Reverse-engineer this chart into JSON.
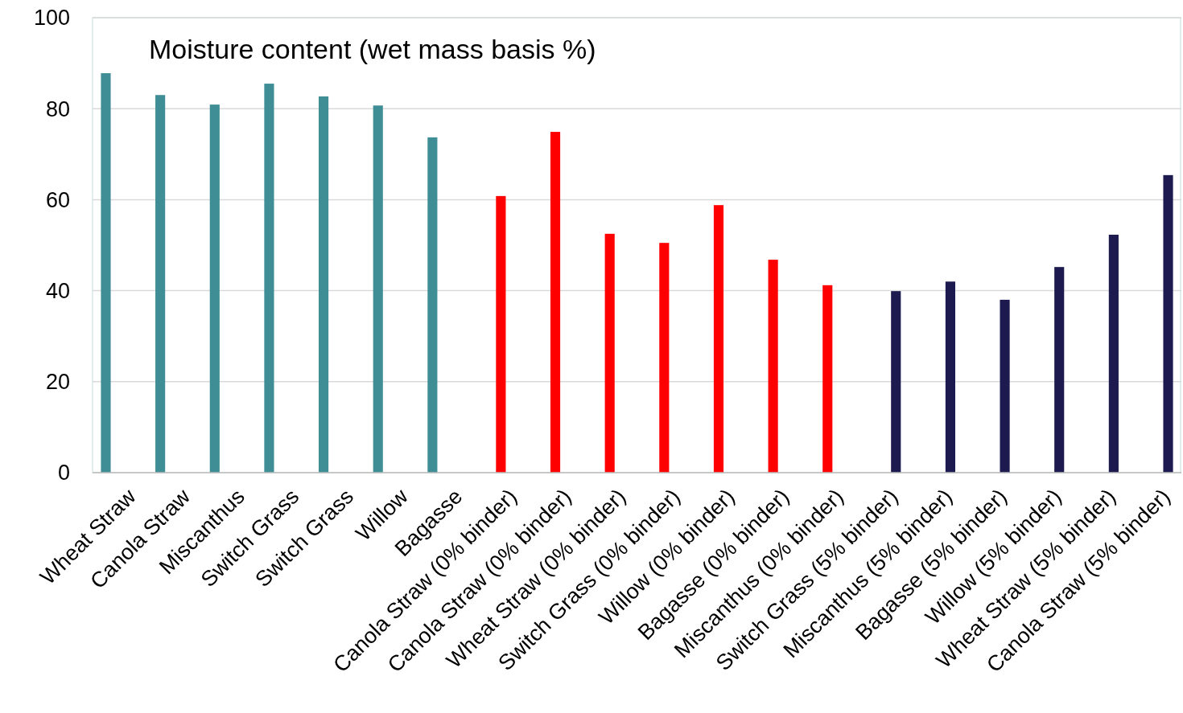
{
  "chart_data": {
    "type": "bar",
    "title": "Moisture content (wet mass basis %)",
    "categories": [
      "Wheat Straw",
      "Canola Straw",
      "Miscanthus",
      "Switch Grass",
      "Switch Grass",
      "Willow",
      "Bagasse",
      "Canola Straw (0% binder)",
      "Canola Straw (0% binder)",
      "Wheat Straw (0% binder)",
      "Switch Grass (0% binder)",
      "Willow (0% binder)",
      "Bagasse (0% binder)",
      "Miscanthus (0% binder)",
      "Switch Grass (5% binder)",
      "Miscanthus (5% binder)",
      "Bagasse (5% binder)",
      "Willow (5% binder)",
      "Wheat Straw (5% binder)",
      "Canola Straw (5% binder)"
    ],
    "series": [
      {
        "color": "#3f8e96",
        "values": [
          87.8,
          83,
          80.9,
          85.5,
          82.7,
          80.7,
          73.7,
          null,
          null,
          null,
          null,
          null,
          null,
          null,
          null,
          null,
          null,
          null,
          null,
          null
        ]
      },
      {
        "color": "#ff0000",
        "values": [
          null,
          null,
          null,
          null,
          null,
          null,
          null,
          60.8,
          74.9,
          52.5,
          50.5,
          58.8,
          46.8,
          41.2,
          null,
          null,
          null,
          null,
          null,
          null
        ]
      },
      {
        "color": "#1c1a4e",
        "values": [
          null,
          null,
          null,
          null,
          null,
          null,
          null,
          null,
          null,
          null,
          null,
          null,
          null,
          null,
          39.9,
          42,
          38,
          45.2,
          52.3,
          65.4
        ]
      }
    ],
    "ylim": [
      0,
      100
    ],
    "yticks": [
      0,
      20,
      40,
      60,
      80,
      100
    ],
    "grid": "y"
  }
}
